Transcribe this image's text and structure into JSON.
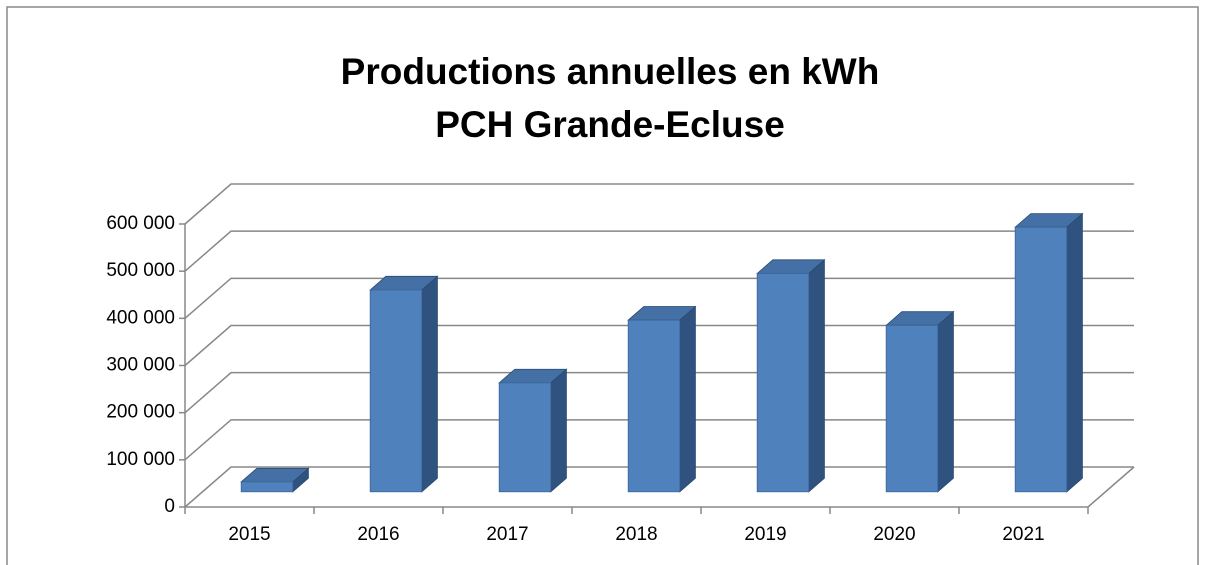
{
  "chart_data": {
    "type": "bar3d",
    "title": "Productions annuelles en kWh",
    "subtitle": "PCH Grande-Ecluse",
    "categories": [
      "2015",
      "2016",
      "2017",
      "2018",
      "2019",
      "2020",
      "2021"
    ],
    "values": [
      21000,
      428000,
      231000,
      364000,
      463000,
      353000,
      561000
    ],
    "color": "#4f81bd",
    "ylim": [
      0,
      600000
    ],
    "yticks": [
      0,
      {
        "value": 100000,
        "label": "100 000"
      },
      {
        "value": 200000,
        "label": "200 000"
      },
      {
        "value": 300000,
        "label": "300 000"
      },
      {
        "value": 400000,
        "label": "400 000"
      },
      {
        "value": 500000,
        "label": "500 000"
      },
      {
        "value": 600000,
        "label": "600 000"
      }
    ],
    "grid": true
  }
}
